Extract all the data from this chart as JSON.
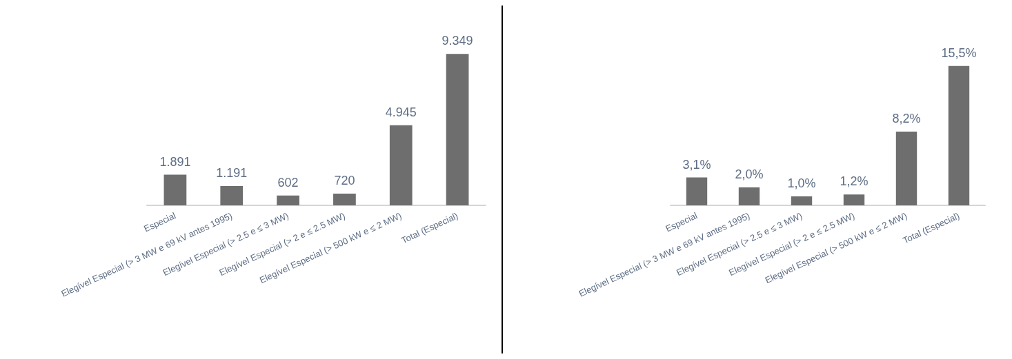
{
  "chart_data": [
    {
      "type": "bar",
      "categories": [
        "Especial",
        "Elegível Especial (> 3 MW e 69 kV antes 1995)",
        "Elegível Especial (> 2.5 e ≤ 3 MW)",
        "Elegível Especial (> 2 e ≤ 2.5 MW)",
        "Elegível Especial (> 500 kW e ≤ 2 MW)",
        "Total (Especial)"
      ],
      "values": [
        1891,
        1191,
        602,
        720,
        4945,
        9349
      ],
      "value_labels": [
        "1.891",
        "1.191",
        "602",
        "720",
        "4.945",
        "9.349"
      ],
      "color": "#6e6e6e"
    },
    {
      "type": "bar",
      "categories": [
        "Especial",
        "Elegível Especial (> 3 MW e 69 kV antes 1995)",
        "Elegível Especial (> 2.5 e ≤ 3 MW)",
        "Elegível Especial (> 2 e ≤ 2.5 MW)",
        "Elegível Especial (> 500 kW e ≤ 2 MW)",
        "Total (Especial)"
      ],
      "values": [
        3.1,
        2.0,
        1.0,
        1.2,
        8.2,
        15.5
      ],
      "value_labels": [
        "3,1%",
        "2,0%",
        "1,0%",
        "1,2%",
        "8,2%",
        "15,5%"
      ],
      "color": "#6e6e6e"
    }
  ]
}
